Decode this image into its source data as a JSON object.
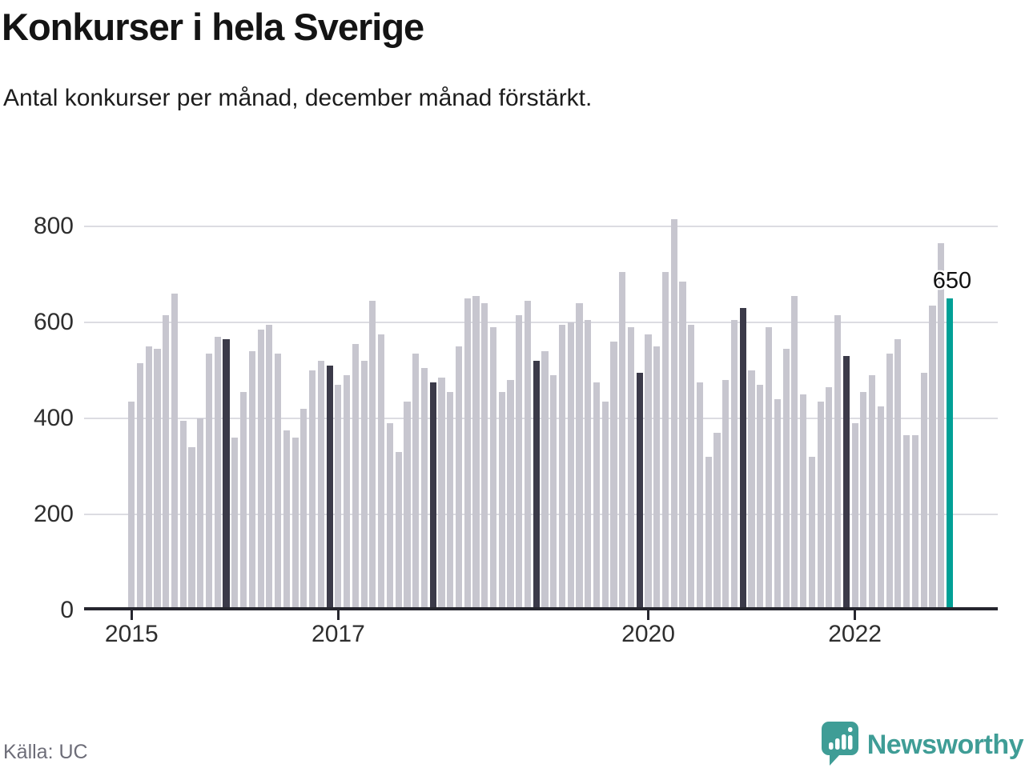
{
  "header": {
    "title": "Konkurser i hela Sverige",
    "subtitle": "Antal konkurser per månad, december månad förstärkt."
  },
  "footer": {
    "source": "Källa: UC",
    "brand_name": "Newsworthy",
    "brand_icon": "newsworthy-speech-bubble-bar-chart-icon"
  },
  "chart_data": {
    "type": "bar",
    "title": "Konkurser i hela Sverige",
    "subtitle": "Antal konkurser per månad, december månad förstärkt.",
    "ylabel": "",
    "xlabel": "",
    "ylim": [
      0,
      800
    ],
    "y_ticks": [
      0,
      200,
      400,
      600,
      800
    ],
    "x_tick_labels": [
      "2015",
      "2017",
      "2020",
      "2022"
    ],
    "grid": "horizontal",
    "legend": "none",
    "x_range": "Jan 2015 - Dec 2022, monthly",
    "series": [
      {
        "year": 2015,
        "values": [
          435,
          515,
          550,
          545,
          615,
          660,
          395,
          340,
          400,
          535,
          570,
          565
        ]
      },
      {
        "year": 2016,
        "values": [
          360,
          455,
          540,
          585,
          595,
          535,
          375,
          360,
          420,
          500,
          520,
          510
        ]
      },
      {
        "year": 2017,
        "values": [
          470,
          490,
          555,
          520,
          645,
          575,
          390,
          330,
          435,
          535,
          505,
          475
        ]
      },
      {
        "year": 2018,
        "values": [
          485,
          455,
          550,
          650,
          655,
          640,
          590,
          455,
          480,
          615,
          645,
          520
        ]
      },
      {
        "year": 2019,
        "values": [
          540,
          490,
          595,
          600,
          640,
          605,
          475,
          435,
          560,
          705,
          590,
          495
        ]
      },
      {
        "year": 2020,
        "values": [
          575,
          550,
          705,
          815,
          685,
          595,
          475,
          320,
          370,
          480,
          605,
          630
        ]
      },
      {
        "year": 2021,
        "values": [
          500,
          470,
          590,
          440,
          545,
          655,
          450,
          320,
          435,
          465,
          615,
          530
        ]
      },
      {
        "year": 2022,
        "values": [
          390,
          455,
          490,
          425,
          535,
          565,
          365,
          365,
          495,
          635,
          765,
          650
        ]
      }
    ],
    "highlight": {
      "december_emphasis": true,
      "latest_bar": {
        "month": "2022-12",
        "value": 650,
        "label": "650"
      }
    },
    "colors": {
      "bar_default": "#c7c6cf",
      "bar_december": "#3b3a49",
      "bar_latest": "#00a096",
      "gridline": "#dcdce2",
      "axis": "#26262e",
      "tick_text": "#2e2e2e",
      "brand_teal": "#3f9d96"
    }
  }
}
